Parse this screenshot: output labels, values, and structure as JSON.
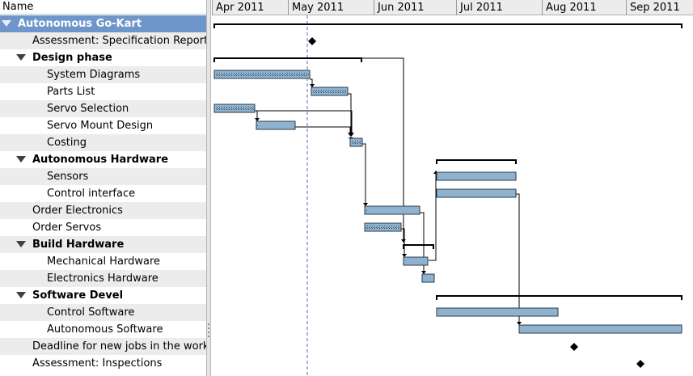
{
  "tree": {
    "header": "Name",
    "rows": [
      {
        "label": "Autonomous Go-Kart",
        "level": 0,
        "expander": true,
        "style": "selected"
      },
      {
        "label": "Assessment: Specification Report",
        "level": 1,
        "expander": false,
        "style": "alt"
      },
      {
        "label": "Design phase",
        "level": 1,
        "expander": true,
        "style": "bold"
      },
      {
        "label": "System Diagrams",
        "level": 2,
        "expander": false,
        "style": "alt"
      },
      {
        "label": "Parts List",
        "level": 2,
        "expander": false,
        "style": ""
      },
      {
        "label": "Servo Selection",
        "level": 2,
        "expander": false,
        "style": "alt"
      },
      {
        "label": "Servo Mount Design",
        "level": 2,
        "expander": false,
        "style": ""
      },
      {
        "label": "Costing",
        "level": 2,
        "expander": false,
        "style": "alt"
      },
      {
        "label": "Autonomous Hardware",
        "level": 1,
        "expander": true,
        "style": "bold"
      },
      {
        "label": "Sensors",
        "level": 2,
        "expander": false,
        "style": "alt"
      },
      {
        "label": "Control interface",
        "level": 2,
        "expander": false,
        "style": ""
      },
      {
        "label": "Order Electronics",
        "level": 1,
        "expander": false,
        "style": "alt"
      },
      {
        "label": "Order Servos",
        "level": 1,
        "expander": false,
        "style": ""
      },
      {
        "label": "Build Hardware",
        "level": 1,
        "expander": true,
        "style": "bold alt"
      },
      {
        "label": "Mechanical Hardware",
        "level": 2,
        "expander": false,
        "style": ""
      },
      {
        "label": "Electronics Hardware",
        "level": 2,
        "expander": false,
        "style": "alt"
      },
      {
        "label": "Software Devel",
        "level": 1,
        "expander": true,
        "style": "bold"
      },
      {
        "label": "Control Software",
        "level": 2,
        "expander": false,
        "style": "alt"
      },
      {
        "label": "Autonomous Software",
        "level": 2,
        "expander": false,
        "style": ""
      },
      {
        "label": "Deadline for new jobs in the works",
        "level": 1,
        "expander": false,
        "style": "alt"
      },
      {
        "label": "Assessment: Inspections",
        "level": 1,
        "expander": false,
        "style": ""
      }
    ]
  },
  "timeline": {
    "months": [
      "Apr 2011",
      "May 2011",
      "Jun 2011",
      "Jul 2011",
      "Aug 2011",
      "Sep 2011"
    ],
    "today_label": "",
    "colors": {
      "bar": "#8fb3cf",
      "bar_border": "#2a3a4a",
      "progress": "#4a5a6a",
      "today_line": "#4a72b0",
      "line": "#000000"
    }
  }
}
